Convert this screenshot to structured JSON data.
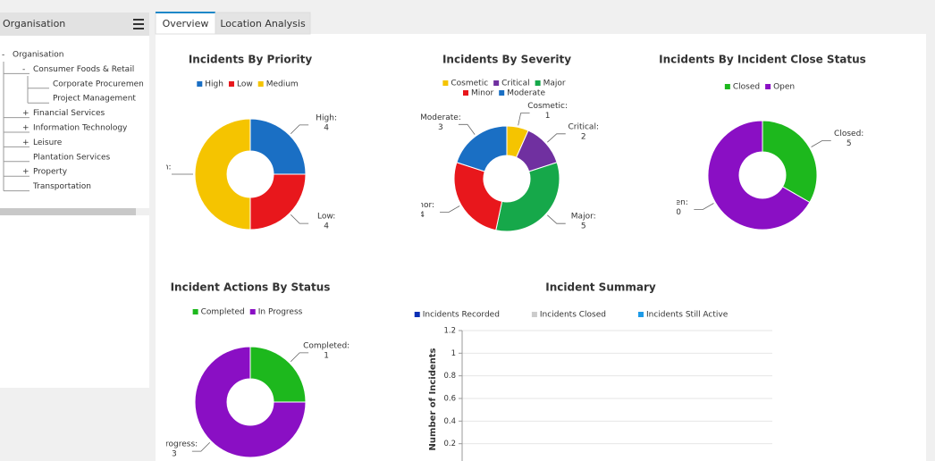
{
  "sidebar": {
    "title": "Organisation",
    "tree": [
      {
        "toggle": "-",
        "label": "Organisation",
        "depth": 0
      },
      {
        "toggle": "-",
        "label": "Consumer Foods & Retail",
        "depth": 1
      },
      {
        "label": "Corporate Procurement Un",
        "depth": 2
      },
      {
        "label": "Project Management",
        "depth": 2
      },
      {
        "toggle": "+",
        "label": "Financial Services",
        "depth": 1
      },
      {
        "toggle": "+",
        "label": "Information Technology",
        "depth": 1
      },
      {
        "toggle": "+",
        "label": "Leisure",
        "depth": 1
      },
      {
        "label": "Plantation Services",
        "depth": 1
      },
      {
        "toggle": "+",
        "label": "Property",
        "depth": 1
      },
      {
        "label": "Transportation",
        "depth": 1
      }
    ]
  },
  "tabs": [
    "Overview",
    "Location Analysis"
  ],
  "active_tab": 0,
  "chart_data": [
    {
      "type": "donut",
      "title": "Incidents By Priority",
      "categories": [
        "High",
        "Low",
        "Medium"
      ],
      "data_labels": [
        "High:",
        "Low:",
        "Medium:"
      ],
      "values": [
        4,
        4,
        8
      ],
      "colors": [
        "#1a6fc4",
        "#e8171c",
        "#f5c400"
      ]
    },
    {
      "type": "donut",
      "title": "Incidents By Severity",
      "categories": [
        "Cosmetic",
        "Critical",
        "Major",
        "Minor",
        "Moderate"
      ],
      "data_labels": [
        "Cosmetic:",
        "Critical:",
        "Major:",
        "Minor:",
        "Moderate:"
      ],
      "values": [
        1,
        2,
        5,
        4,
        3
      ],
      "colors": [
        "#f5c400",
        "#7030a0",
        "#16a84a",
        "#e8171c",
        "#1a6fc4"
      ]
    },
    {
      "type": "donut",
      "title": "Incidents By Incident Close Status",
      "categories": [
        "Closed",
        "Open"
      ],
      "data_labels": [
        "Closed:",
        "Open:"
      ],
      "values": [
        5,
        10
      ],
      "colors": [
        "#1db81d",
        "#8a0fc4"
      ]
    },
    {
      "type": "donut",
      "title": "Incident Actions By Status",
      "categories": [
        "Completed",
        "In Progress"
      ],
      "data_labels": [
        "Completed:",
        "In Progress:"
      ],
      "values": [
        1,
        3
      ],
      "colors": [
        "#1db81d",
        "#8a0fc4"
      ]
    },
    {
      "type": "bar",
      "title": "Incident Summary",
      "y_label": "Number of Incidents",
      "categories": [],
      "series": [
        {
          "name": "Incidents Recorded",
          "color": "#0b2fb5",
          "values": []
        },
        {
          "name": "Incidents Closed",
          "color": "#cccccc",
          "values": []
        },
        {
          "name": "Incidents Still Active",
          "color": "#1e9be8",
          "values": []
        }
      ],
      "ylim": [
        0,
        1.2
      ],
      "yticks": [
        0.2,
        0.4,
        0.6,
        0.8,
        1,
        1.2
      ],
      "grid": true
    }
  ]
}
